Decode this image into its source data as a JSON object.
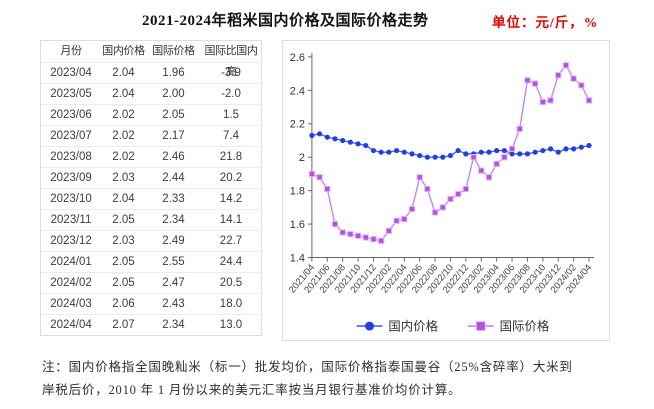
{
  "title": "2021-2024年稻米国内价格及国际价格走势",
  "unit_label": "单位：元/斤，%",
  "accent_red": "#e60000",
  "table": {
    "headers": [
      "月份",
      "国内价格",
      "国际价格",
      "国际比国内高"
    ],
    "rows": [
      [
        "2023/04",
        "2.04",
        "1.96",
        "-3.9"
      ],
      [
        "2023/05",
        "2.04",
        "2.00",
        "-2.0"
      ],
      [
        "2023/06",
        "2.02",
        "2.05",
        "1.5"
      ],
      [
        "2023/07",
        "2.02",
        "2.17",
        "7.4"
      ],
      [
        "2023/08",
        "2.02",
        "2.46",
        "21.8"
      ],
      [
        "2023/09",
        "2.03",
        "2.44",
        "20.2"
      ],
      [
        "2023/10",
        "2.04",
        "2.33",
        "14.2"
      ],
      [
        "2023/11",
        "2.05",
        "2.34",
        "14.1"
      ],
      [
        "2023/12",
        "2.03",
        "2.49",
        "22.7"
      ],
      [
        "2024/01",
        "2.05",
        "2.55",
        "24.4"
      ],
      [
        "2024/02",
        "2.05",
        "2.47",
        "20.5"
      ],
      [
        "2024/03",
        "2.06",
        "2.43",
        "18.0"
      ],
      [
        "2024/04",
        "2.07",
        "2.34",
        "13.0"
      ]
    ]
  },
  "chart_data": {
    "type": "line",
    "title": "2021-2024年稻米国内价格及国际价格走势",
    "ylim": [
      1.4,
      2.6
    ],
    "ytick_step": 0.2,
    "xtick_every": 2,
    "grid": false,
    "legend_position": "bottom",
    "x": [
      "2021/04",
      "2021/05",
      "2021/06",
      "2021/07",
      "2021/08",
      "2021/09",
      "2021/10",
      "2021/11",
      "2021/12",
      "2022/01",
      "2022/02",
      "2022/03",
      "2022/04",
      "2022/05",
      "2022/06",
      "2022/07",
      "2022/08",
      "2022/09",
      "2022/10",
      "2022/11",
      "2022/12",
      "2023/01",
      "2023/02",
      "2023/03",
      "2023/04",
      "2023/05",
      "2023/06",
      "2023/07",
      "2023/08",
      "2023/09",
      "2023/10",
      "2023/11",
      "2023/12",
      "2024/01",
      "2024/02",
      "2024/03",
      "2024/04"
    ],
    "series": [
      {
        "id": "domestic-price",
        "name": "国内价格",
        "marker": "circle",
        "marker_color": "#2240e0",
        "marker_edge": "#5a73ea",
        "line_color": "#4a63e6",
        "values": [
          2.13,
          2.14,
          2.12,
          2.11,
          2.1,
          2.09,
          2.08,
          2.07,
          2.04,
          2.03,
          2.03,
          2.04,
          2.03,
          2.02,
          2.01,
          2.0,
          2.0,
          2.0,
          2.01,
          2.04,
          2.02,
          2.02,
          2.03,
          2.03,
          2.04,
          2.04,
          2.02,
          2.02,
          2.02,
          2.03,
          2.04,
          2.05,
          2.03,
          2.05,
          2.05,
          2.06,
          2.07
        ]
      },
      {
        "id": "international-price",
        "name": "国际价格",
        "marker": "square",
        "marker_color": "#b153e0",
        "marker_edge": "#e3bcf6",
        "line_color": "#c687ec",
        "values": [
          1.9,
          1.88,
          1.81,
          1.6,
          1.55,
          1.54,
          1.53,
          1.52,
          1.51,
          1.5,
          1.56,
          1.62,
          1.63,
          1.69,
          1.88,
          1.81,
          1.67,
          1.7,
          1.75,
          1.78,
          1.81,
          2.0,
          1.92,
          1.88,
          1.96,
          2.0,
          2.05,
          2.17,
          2.46,
          2.44,
          2.33,
          2.34,
          2.49,
          2.55,
          2.47,
          2.43,
          2.34
        ]
      }
    ]
  },
  "note": {
    "line1": "注：国内价格指全国晚籼米（标一）批发均价，国际价格指泰国曼谷（25%含碎率）大米到",
    "line2": "岸税后价，2010 年 1 月份以来的美元汇率按当月银行基准价均价计算。"
  }
}
